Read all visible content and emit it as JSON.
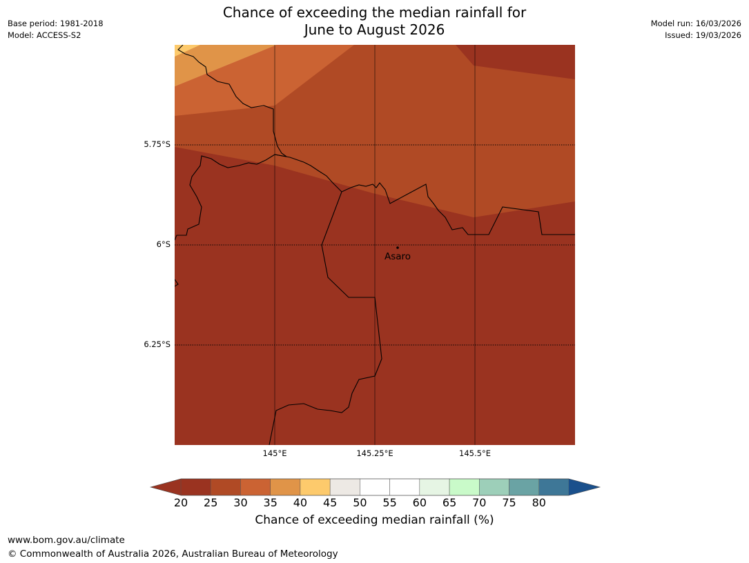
{
  "header": {
    "title_line1": "Chance of exceeding the median rainfall for",
    "title_line2": "June to August 2026",
    "base_period": "Base period: 1981-2018",
    "model": "Model: ACCESS-S2",
    "model_run": "Model run: 16/03/2026",
    "issued": "Issued: 19/03/2026"
  },
  "map": {
    "lat_labels": [
      "5.75°S",
      "6°S",
      "6.25°S"
    ],
    "lon_labels": [
      "145°E",
      "145.25°E",
      "145.5°E"
    ],
    "place": "Asaro"
  },
  "colorbar": {
    "ticks": [
      "20",
      "25",
      "30",
      "35",
      "40",
      "45",
      "50",
      "55",
      "60",
      "65",
      "70",
      "75",
      "80"
    ],
    "colors": [
      "#9a3320",
      "#b04a25",
      "#cb6333",
      "#e09448",
      "#fdca6c",
      "#ede9e4",
      "#ffffff",
      "#ffffff",
      "#e6f5e4",
      "#c9fac9",
      "#9dcfb9",
      "#6aa3a4",
      "#3e7797"
    ],
    "under_color": "#9a3320",
    "over_color": "#1a508c",
    "label": "Chance of exceeding median rainfall (%)"
  },
  "footer": {
    "url": "www.bom.gov.au/climate",
    "copyright": "© Commonwealth of Australia 2026, Australian Bureau of Meteorology"
  }
}
